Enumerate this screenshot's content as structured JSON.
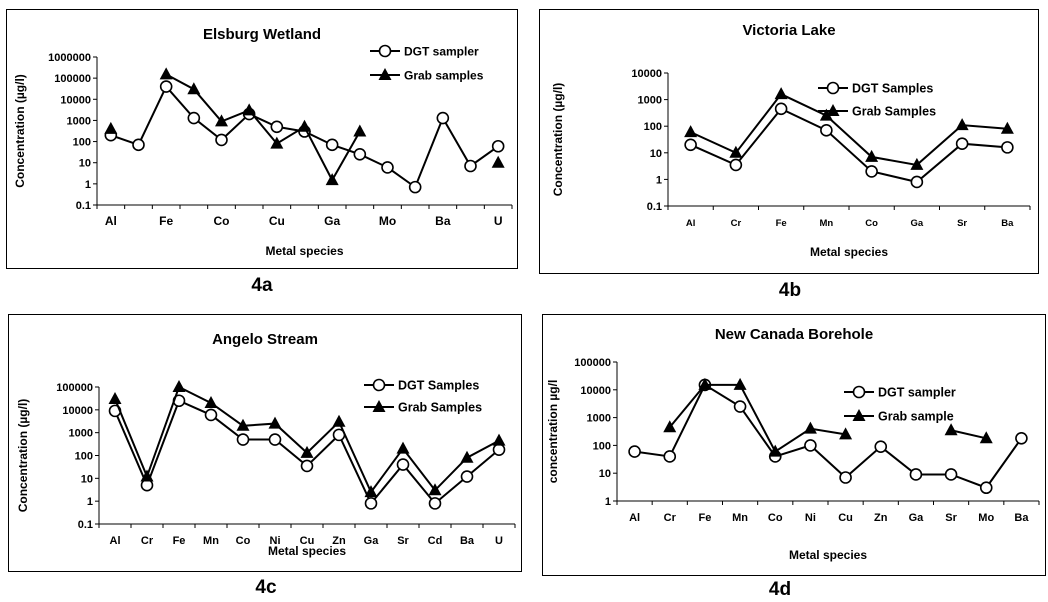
{
  "chart_data": [
    {
      "type": "line",
      "title": "Elsburg Wetland",
      "figure_label": "4a",
      "xlabel": "Metal species",
      "ylabel": "Concentration (µg/l)",
      "yscale": "log",
      "ylim": [
        0.1,
        1000000
      ],
      "yticks": [
        "0.1",
        "1",
        "10",
        "100",
        "1000",
        "10000",
        "100000",
        "1000000"
      ],
      "categories": [
        "Al",
        "",
        "Fe",
        "",
        "Co",
        "",
        "Cu",
        "",
        "Ga",
        "",
        "Mo",
        "",
        "Ba",
        "",
        "U"
      ],
      "legend_position": "top-right",
      "series": [
        {
          "name": "DGT sampler",
          "marker": "circle",
          "values": [
            200,
            70,
            40000,
            1300,
            120,
            2000,
            500,
            300,
            70,
            25,
            6,
            0.7,
            1300,
            7,
            60
          ]
        },
        {
          "name": "Grab samples",
          "marker": "triangle",
          "values": [
            400,
            null,
            150000,
            30000,
            900,
            3000,
            80,
            500,
            1.5,
            300,
            null,
            null,
            null,
            null,
            10
          ]
        }
      ]
    },
    {
      "type": "line",
      "title": "Victoria Lake",
      "figure_label": "4b",
      "xlabel": "Metal species",
      "ylabel": "Concentration (µg/l)",
      "yscale": "log",
      "ylim": [
        0.1,
        10000
      ],
      "yticks": [
        "0.1",
        "1",
        "10",
        "100",
        "1000",
        "10000"
      ],
      "categories": [
        "Al",
        "Cr",
        "Fe",
        "Mn",
        "Co",
        "Ga",
        "Sr",
        "Ba"
      ],
      "legend_position": "top-right",
      "series": [
        {
          "name": "DGT Samples",
          "marker": "circle",
          "values": [
            20,
            3.5,
            450,
            70,
            2,
            0.8,
            22,
            16
          ]
        },
        {
          "name": "Grab Samples",
          "marker": "triangle",
          "values": [
            60,
            10,
            1600,
            250,
            7,
            3.5,
            110,
            80
          ]
        }
      ]
    },
    {
      "type": "line",
      "title": "Angelo Stream",
      "figure_label": "4c",
      "xlabel": "Metal species",
      "ylabel": "Concentration (µg/l)",
      "yscale": "log",
      "ylim": [
        0.1,
        100000
      ],
      "yticks": [
        "0.1",
        "1",
        "10",
        "100",
        "1000",
        "10000",
        "100000"
      ],
      "categories": [
        "Al",
        "Cr",
        "Fe",
        "Mn",
        "Co",
        "Ni",
        "Cu",
        "Zn",
        "Ga",
        "Sr",
        "Cd",
        "Ba",
        "U"
      ],
      "legend_position": "top-right",
      "series": [
        {
          "name": "DGT Samples",
          "marker": "circle",
          "values": [
            9000,
            5,
            25000,
            6000,
            500,
            500,
            35,
            800,
            0.8,
            40,
            0.8,
            12,
            180
          ]
        },
        {
          "name": "Grab Samples",
          "marker": "triangle",
          "values": [
            30000,
            12,
            100000,
            20000,
            2000,
            2500,
            130,
            3000,
            2.5,
            200,
            3,
            80,
            450
          ]
        }
      ]
    },
    {
      "type": "line",
      "title": "New Canada Borehole",
      "figure_label": "4d",
      "xlabel": "Metal species",
      "ylabel": "concentration µg/l",
      "yscale": "log",
      "ylim": [
        1,
        100000
      ],
      "yticks": [
        "1",
        "10",
        "100",
        "1000",
        "10000",
        "100000"
      ],
      "categories": [
        "Al",
        "Cr",
        "Fe",
        "Mn",
        "Co",
        "Ni",
        "Cu",
        "Zn",
        "Ga",
        "Sr",
        "Mo",
        "Ba"
      ],
      "legend_position": "top-right",
      "series": [
        {
          "name": "DGT sampler",
          "marker": "circle",
          "values": [
            60,
            40,
            15000,
            2500,
            40,
            100,
            7,
            90,
            9,
            9,
            3,
            180
          ]
        },
        {
          "name": "Grab sample",
          "marker": "triangle",
          "values": [
            null,
            450,
            15000,
            15000,
            60,
            400,
            250,
            null,
            null,
            350,
            180,
            null
          ]
        }
      ]
    }
  ]
}
